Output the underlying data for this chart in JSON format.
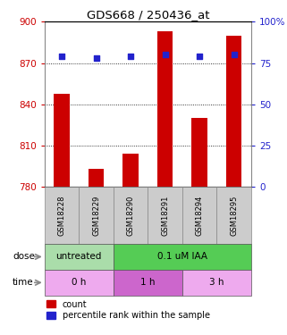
{
  "title": "GDS668 / 250436_at",
  "samples": [
    "GSM18228",
    "GSM18229",
    "GSM18290",
    "GSM18291",
    "GSM18294",
    "GSM18295"
  ],
  "bar_values": [
    848,
    793,
    804,
    893,
    830,
    890
  ],
  "bar_bottom": 780,
  "percentile_values": [
    79,
    78,
    79,
    80,
    79,
    80
  ],
  "bar_color": "#cc0000",
  "dot_color": "#2222cc",
  "ylim_left": [
    780,
    900
  ],
  "ylim_right": [
    0,
    100
  ],
  "yticks_left": [
    780,
    810,
    840,
    870,
    900
  ],
  "yticks_right": [
    0,
    25,
    50,
    75,
    100
  ],
  "dose_groups": [
    {
      "label": "untreated",
      "color": "#aaddaa",
      "cols": [
        0,
        1
      ]
    },
    {
      "label": "0.1 uM IAA",
      "color": "#55cc55",
      "cols": [
        2,
        3,
        4,
        5
      ]
    }
  ],
  "time_groups": [
    {
      "label": "0 h",
      "color": "#eeaaee",
      "cols": [
        0,
        1
      ]
    },
    {
      "label": "1 h",
      "color": "#cc66cc",
      "cols": [
        2,
        3
      ]
    },
    {
      "label": "3 h",
      "color": "#eeaaee",
      "cols": [
        4,
        5
      ]
    }
  ],
  "tick_label_color_left": "#cc0000",
  "tick_label_color_right": "#2222cc",
  "grid_color": "#000000",
  "background_color": "#ffffff",
  "sample_box_color": "#cccccc"
}
